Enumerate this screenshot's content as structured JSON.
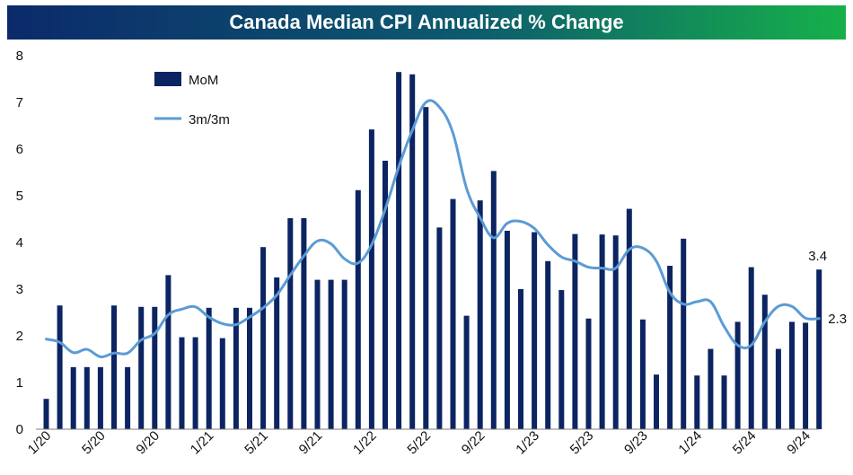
{
  "chart_data": {
    "type": "bar",
    "title": "Canada Median CPI Annualized % Change",
    "xlabel": "",
    "ylabel": "",
    "ylim": [
      0,
      8
    ],
    "yticks": [
      0,
      1,
      2,
      3,
      4,
      5,
      6,
      7,
      8
    ],
    "grid": false,
    "legend_position": "top-left",
    "x": [
      "1/20",
      "2/20",
      "3/20",
      "4/20",
      "5/20",
      "6/20",
      "7/20",
      "8/20",
      "9/20",
      "10/20",
      "11/20",
      "12/20",
      "1/21",
      "2/21",
      "3/21",
      "4/21",
      "5/21",
      "6/21",
      "7/21",
      "8/21",
      "9/21",
      "10/21",
      "11/21",
      "12/21",
      "1/22",
      "2/22",
      "3/22",
      "4/22",
      "5/22",
      "6/22",
      "7/22",
      "8/22",
      "9/22",
      "10/22",
      "11/22",
      "12/22",
      "1/23",
      "2/23",
      "3/23",
      "4/23",
      "5/23",
      "6/23",
      "7/23",
      "8/23",
      "9/23",
      "10/23",
      "11/23",
      "12/23",
      "1/24",
      "2/24",
      "3/24",
      "4/24",
      "5/24",
      "6/24",
      "7/24",
      "8/24",
      "9/24",
      "10/24"
    ],
    "x_tick_labels": [
      "1/20",
      "5/20",
      "9/20",
      "1/21",
      "5/21",
      "9/21",
      "1/22",
      "5/22",
      "9/22",
      "1/23",
      "5/23",
      "9/23",
      "1/24",
      "5/24",
      "9/24"
    ],
    "series": [
      {
        "name": "MoM",
        "type": "bar",
        "color": "#0c2461",
        "values": [
          0.65,
          2.65,
          1.33,
          1.33,
          1.33,
          2.65,
          1.33,
          2.62,
          2.62,
          3.3,
          1.97,
          1.97,
          2.6,
          1.95,
          2.6,
          2.6,
          3.9,
          3.25,
          4.52,
          4.52,
          3.2,
          3.2,
          3.2,
          5.12,
          6.42,
          5.75,
          7.65,
          7.6,
          6.9,
          4.32,
          4.93,
          2.43,
          4.9,
          5.53,
          4.25,
          3.0,
          4.22,
          3.6,
          2.98,
          4.18,
          2.37,
          4.17,
          4.15,
          4.72,
          2.35,
          1.17,
          3.5,
          4.08,
          1.15,
          1.72,
          1.15,
          2.3,
          3.47,
          2.88,
          1.72,
          2.3,
          2.28,
          3.42
        ]
      },
      {
        "name": "3m/3m",
        "type": "line",
        "color": "#5b9bd5",
        "values": [
          1.93,
          1.86,
          1.64,
          1.71,
          1.55,
          1.63,
          1.63,
          1.91,
          2.05,
          2.45,
          2.57,
          2.62,
          2.4,
          2.26,
          2.24,
          2.4,
          2.6,
          2.87,
          3.3,
          3.71,
          4.03,
          3.97,
          3.65,
          3.56,
          3.95,
          4.71,
          5.62,
          6.4,
          7.0,
          6.9,
          6.34,
          5.16,
          4.53,
          4.1,
          4.41,
          4.45,
          4.3,
          3.95,
          3.69,
          3.6,
          3.47,
          3.45,
          3.45,
          3.85,
          3.88,
          3.6,
          2.93,
          2.68,
          2.73,
          2.73,
          2.2,
          1.8,
          1.8,
          2.3,
          2.63,
          2.63,
          2.38,
          2.37
        ]
      }
    ],
    "annotations": [
      {
        "series": "MoM",
        "text": "3.4"
      },
      {
        "series": "3m/3m",
        "text": "2.3"
      }
    ]
  }
}
